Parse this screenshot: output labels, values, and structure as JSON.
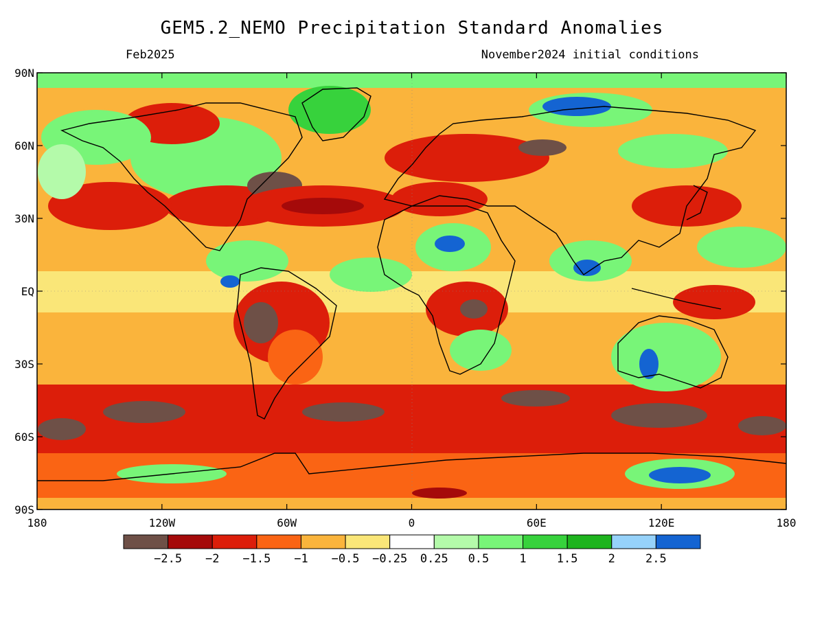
{
  "header": {
    "title": "GEM5.2_NEMO Precipitation Standard Anomalies",
    "valid_month": "Feb2025",
    "init": "November2024 initial conditions"
  },
  "axes": {
    "lat_labels": [
      "90N",
      "60N",
      "30N",
      "EQ",
      "30S",
      "60S",
      "90S"
    ],
    "lon_labels": [
      "180",
      "120W",
      "60W",
      "0",
      "60E",
      "120E",
      "180"
    ]
  },
  "colorbar": {
    "colors": [
      "#6e5047",
      "#a50a0a",
      "#dc1e0a",
      "#fa6414",
      "#fab43c",
      "#fae678",
      "#ffffff",
      "#b4faaa",
      "#78f578",
      "#37d23c",
      "#1eb41e",
      "#96d2fa",
      "#1464d2"
    ],
    "labels": [
      "−2.5",
      "−2",
      "−1.5",
      "−1",
      "−0.5",
      "−0.25",
      "0.25",
      "0.5",
      "1",
      "1.5",
      "2",
      "2.5"
    ]
  }
}
